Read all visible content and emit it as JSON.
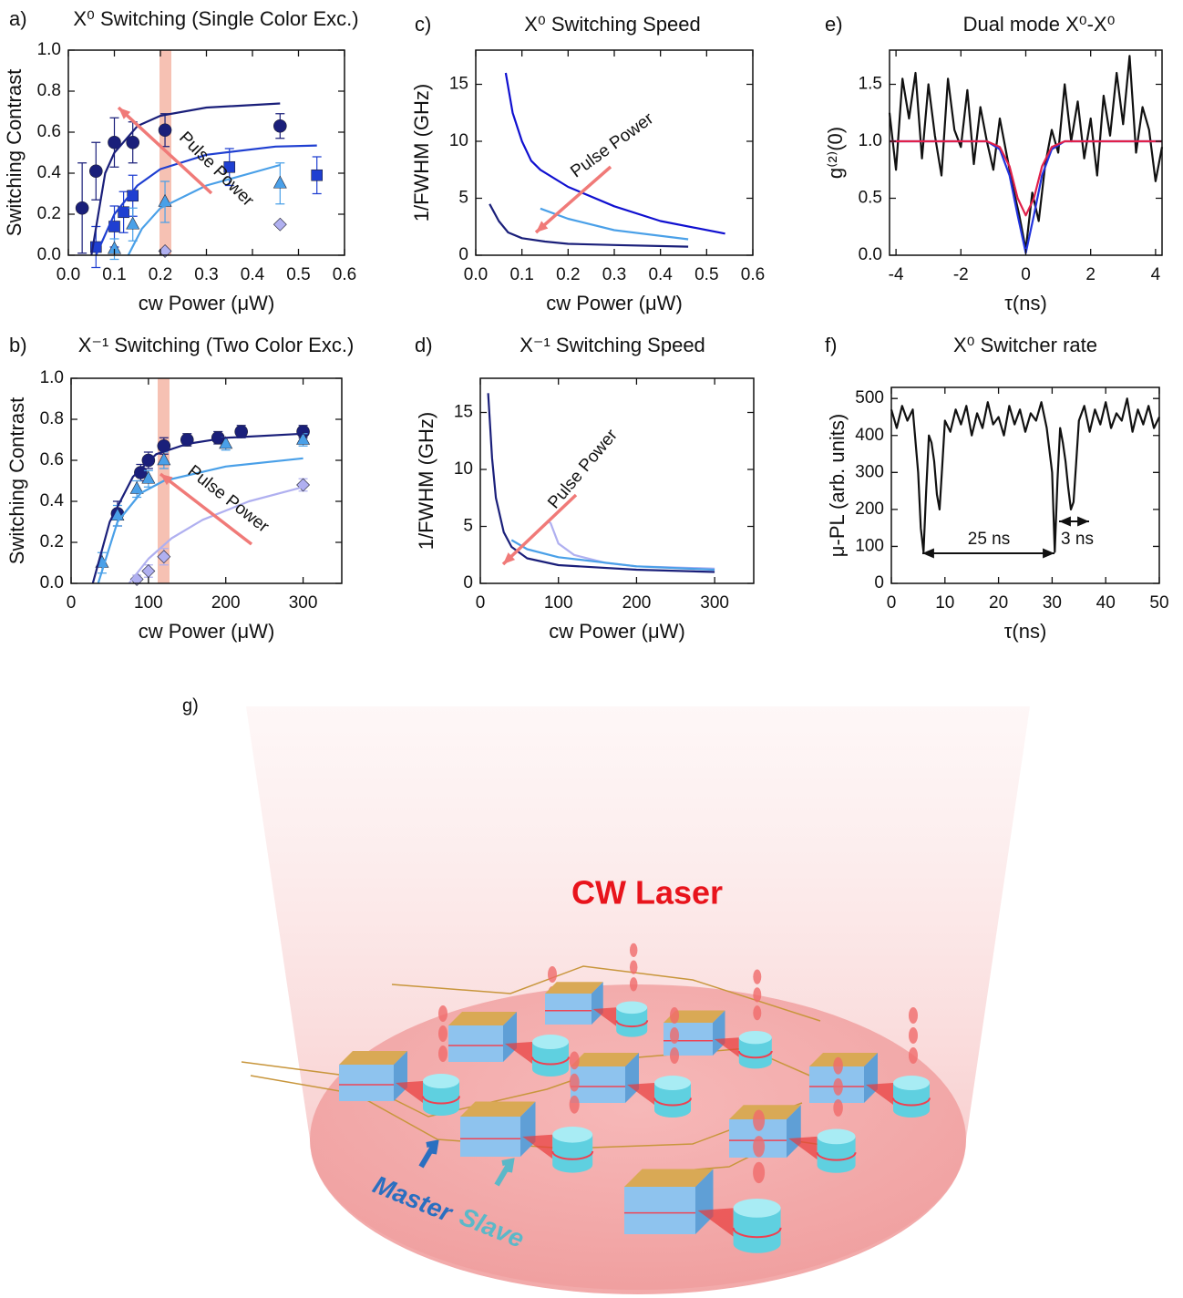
{
  "chart_data": [
    {
      "type": "scatter",
      "panel": "a)",
      "title": "X⁰ Switching (Single Color Exc.)",
      "xlabel": "cw Power (μW)",
      "ylabel": "Switching Contrast",
      "xlim": [
        0,
        0.6
      ],
      "xticks": [
        {
          "value": 0,
          "label": "0.0"
        },
        0.1,
        0.2,
        0.3,
        0.4,
        0.5,
        0.6
      ],
      "ylim": [
        0,
        1
      ],
      "yticks": [
        {
          "value": 0,
          "label": "0.0"
        },
        0.2,
        0.4,
        0.6,
        0.8,
        {
          "value": 1,
          "label": "1.0"
        }
      ],
      "annotations": [
        "Pulse Power"
      ],
      "series": [
        {
          "color": "#1a1f7a",
          "marker": "circle",
          "x": [
            0.03,
            0.06,
            0.1,
            0.14,
            0.21,
            0.46
          ],
          "values": [
            0.23,
            0.41,
            0.55,
            0.55,
            0.61,
            0.63
          ],
          "errors": [
            0.22,
            0.14,
            0.12,
            0.1,
            0.08,
            0.06
          ]
        },
        {
          "color": "#1f3fd1",
          "marker": "square",
          "x": [
            0.06,
            0.1,
            0.12,
            0.14,
            0.35,
            0.54
          ],
          "values": [
            0.04,
            0.14,
            0.21,
            0.29,
            0.43,
            0.39
          ],
          "errors": [
            0.1,
            0.1,
            0.1,
            0.1,
            0.09,
            0.09
          ]
        },
        {
          "color": "#4aa0e8",
          "marker": "triangle",
          "x": [
            0.1,
            0.14,
            0.21,
            0.46
          ],
          "values": [
            0.03,
            0.15,
            0.26,
            0.35
          ],
          "errors": [
            0.05,
            0.08,
            0.1,
            0.1
          ]
        },
        {
          "color": "#b0b0f0",
          "marker": "diamond",
          "x": [
            0.21,
            0.46
          ],
          "values": [
            0.02,
            0.15
          ]
        },
        {
          "color": "#1a1f7a",
          "x": [
            0.05,
            0.08,
            0.1,
            0.15,
            0.2,
            0.3,
            0.46
          ],
          "values": [
            0,
            0.4,
            0.5,
            0.63,
            0.68,
            0.72,
            0.74
          ]
        },
        {
          "color": "#1f3fd1",
          "x": [
            0.06,
            0.1,
            0.15,
            0.2,
            0.3,
            0.45,
            0.54
          ],
          "values": [
            0,
            0.2,
            0.34,
            0.42,
            0.49,
            0.53,
            0.535
          ]
        },
        {
          "color": "#4aa0e8",
          "x": [
            0.13,
            0.16,
            0.2,
            0.3,
            0.46
          ],
          "values": [
            0,
            0.13,
            0.23,
            0.34,
            0.44
          ]
        }
      ]
    },
    {
      "type": "line",
      "panel": "c)",
      "title": "X⁰ Switching Speed",
      "xlabel": "cw Power (μW)",
      "ylabel": "1/FWHM (GHz)",
      "xlim": [
        0,
        0.6
      ],
      "xticks": [
        {
          "value": 0,
          "label": "0.0"
        },
        0.1,
        0.2,
        0.3,
        0.4,
        0.5,
        0.6
      ],
      "ylim": [
        0,
        18
      ],
      "yticks": [
        0,
        5,
        10,
        15
      ],
      "annotations": [
        "Pulse Power"
      ],
      "series": [
        {
          "color": "#1010d0",
          "x": [
            0.065,
            0.08,
            0.1,
            0.12,
            0.14,
            0.2,
            0.3,
            0.4,
            0.54
          ],
          "values": [
            16,
            12.5,
            10,
            8.3,
            7.5,
            6,
            4.3,
            3,
            1.9
          ]
        },
        {
          "color": "#4aa0e8",
          "x": [
            0.14,
            0.2,
            0.3,
            0.46
          ],
          "values": [
            4.1,
            3.2,
            2.2,
            1.4
          ]
        },
        {
          "color": "#1a1f7a",
          "x": [
            0.03,
            0.05,
            0.07,
            0.1,
            0.15,
            0.2,
            0.3,
            0.46
          ],
          "values": [
            4.5,
            3,
            2,
            1.5,
            1.2,
            1,
            0.9,
            0.75
          ]
        }
      ]
    },
    {
      "type": "line",
      "panel": "e)",
      "title": "Dual mode X⁰-X⁰",
      "xlabel": "τ(ns)",
      "ylabel": "g⁽²⁾(0)",
      "xlim": [
        -4.2,
        4.2
      ],
      "xticks": [
        -4,
        -2,
        0,
        2,
        4
      ],
      "ylim": [
        0,
        1.8
      ],
      "yticks": [
        {
          "value": 0,
          "label": "0.0"
        },
        0.5,
        {
          "value": 1,
          "label": "1.0"
        },
        1.5
      ],
      "series": [
        {
          "color": "#111111",
          "x": [
            -4.2,
            -4,
            -3.8,
            -3.6,
            -3.4,
            -3.2,
            -3,
            -2.8,
            -2.6,
            -2.4,
            -2.2,
            -2,
            -1.8,
            -1.6,
            -1.4,
            -1.2,
            -1,
            -0.8,
            -0.6,
            -0.4,
            -0.2,
            0,
            0.2,
            0.4,
            0.6,
            0.8,
            1,
            1.2,
            1.4,
            1.6,
            1.8,
            2,
            2.2,
            2.4,
            2.6,
            2.8,
            3,
            3.2,
            3.4,
            3.6,
            3.8,
            4,
            4.2
          ],
          "values": [
            1.25,
            0.75,
            1.55,
            1.2,
            1.6,
            0.85,
            1.5,
            1.05,
            0.7,
            1.55,
            1.1,
            0.95,
            1.45,
            0.8,
            1.3,
            1.0,
            0.75,
            1.2,
            0.9,
            0.6,
            0.35,
            0.05,
            0.55,
            0.3,
            0.8,
            1.1,
            0.9,
            1.5,
            1.0,
            1.35,
            0.85,
            1.2,
            0.7,
            1.4,
            1.05,
            1.6,
            1.15,
            1.75,
            0.9,
            1.3,
            1.1,
            0.65,
            0.95
          ]
        },
        {
          "color": "#2233dd",
          "x": [
            -4.2,
            -1.2,
            -0.8,
            -0.5,
            -0.25,
            0,
            0.25,
            0.5,
            0.8,
            1.2,
            4.2
          ],
          "values": [
            1,
            1,
            0.93,
            0.7,
            0.35,
            0.02,
            0.35,
            0.7,
            0.93,
            1,
            1
          ]
        },
        {
          "color": "#e0204a",
          "x": [
            -4.2,
            -1.2,
            -0.8,
            -0.5,
            -0.25,
            0,
            0.25,
            0.5,
            0.8,
            1.2,
            4.2
          ],
          "values": [
            1,
            1,
            0.95,
            0.78,
            0.5,
            0.35,
            0.5,
            0.78,
            0.95,
            1,
            1
          ]
        }
      ]
    },
    {
      "type": "scatter",
      "panel": "b)",
      "title": "X⁻¹ Switching (Two Color Exc.)",
      "xlabel": "cw Power (μW)",
      "ylabel": "Switching Contrast",
      "xlim": [
        0,
        350
      ],
      "xticks": [
        0,
        100,
        200,
        300
      ],
      "ylim": [
        0,
        1
      ],
      "yticks": [
        {
          "value": 0,
          "label": "0.0"
        },
        0.2,
        0.4,
        0.6,
        0.8,
        {
          "value": 1,
          "label": "1.0"
        }
      ],
      "annotations": [
        "Pulse Power"
      ],
      "series": [
        {
          "color": "#1a1f7a",
          "marker": "circle",
          "x": [
            60,
            90,
            100,
            120,
            150,
            190,
            220,
            300
          ],
          "values": [
            0.34,
            0.54,
            0.6,
            0.67,
            0.7,
            0.71,
            0.74,
            0.74
          ],
          "errors": [
            0.06,
            0.04,
            0.04,
            0.04,
            0.03,
            0.03,
            0.03,
            0.03
          ]
        },
        {
          "color": "#4aa0e8",
          "marker": "triangle",
          "x": [
            40,
            60,
            85,
            100,
            120,
            200,
            300
          ],
          "values": [
            0.1,
            0.33,
            0.46,
            0.51,
            0.6,
            0.68,
            0.7
          ],
          "errors": [
            0.05,
            0.05,
            0.04,
            0.04,
            0.04,
            0.03,
            0.03
          ]
        },
        {
          "color": "#b0b0f0",
          "marker": "diamond",
          "x": [
            85,
            100,
            120,
            300
          ],
          "values": [
            0.02,
            0.06,
            0.13,
            0.48
          ],
          "errors": [
            0.02,
            0.03,
            0.04,
            0.03
          ]
        },
        {
          "color": "#1a1f7a",
          "x": [
            28,
            50,
            80,
            110,
            150,
            200,
            300
          ],
          "values": [
            0,
            0.3,
            0.52,
            0.63,
            0.68,
            0.71,
            0.73
          ]
        },
        {
          "color": "#4aa0e8",
          "x": [
            35,
            60,
            90,
            120,
            200,
            300
          ],
          "values": [
            0,
            0.3,
            0.44,
            0.5,
            0.57,
            0.61
          ]
        },
        {
          "color": "#b0b0f0",
          "x": [
            75,
            100,
            130,
            170,
            230,
            300
          ],
          "values": [
            0,
            0.12,
            0.22,
            0.31,
            0.4,
            0.47
          ]
        }
      ]
    },
    {
      "type": "line",
      "panel": "d)",
      "title": "X⁻¹ Switching Speed",
      "xlabel": "cw Power (μW)",
      "ylabel": "1/FWHM (GHz)",
      "xlim": [
        0,
        350
      ],
      "xticks": [
        0,
        100,
        200,
        300
      ],
      "ylim": [
        0,
        18
      ],
      "yticks": [
        0,
        5,
        10,
        15
      ],
      "annotations": [
        "Pulse Power"
      ],
      "series": [
        {
          "color": "#b0b0f0",
          "x": [
            85,
            90,
            100,
            120,
            160,
            200,
            300
          ],
          "values": [
            5.5,
            5.3,
            3.5,
            2.5,
            1.8,
            1.5,
            1.3
          ]
        },
        {
          "color": "#4aa0e8",
          "x": [
            40,
            60,
            100,
            200,
            300
          ],
          "values": [
            3.8,
            3.0,
            2.3,
            1.5,
            1.2
          ]
        },
        {
          "color": "#1a1f7a",
          "x": [
            10,
            15,
            20,
            30,
            40,
            60,
            100,
            200,
            300
          ],
          "values": [
            16.7,
            11,
            7.5,
            4.5,
            3.2,
            2.2,
            1.6,
            1.2,
            1
          ]
        }
      ]
    },
    {
      "type": "line",
      "panel": "f)",
      "title": "X⁰ Switcher rate",
      "xlabel": "τ(ns)",
      "ylabel": "μ-PL (arb. units)",
      "xlim": [
        0,
        50
      ],
      "xticks": [
        0,
        10,
        20,
        30,
        40,
        50
      ],
      "ylim": [
        0,
        530
      ],
      "yticks": [
        0,
        100,
        200,
        300,
        400,
        500
      ],
      "annotations": [
        "25 ns",
        "3 ns"
      ],
      "series": [
        {
          "color": "#111111",
          "x": [
            0,
            1,
            2,
            3,
            4,
            5,
            5.5,
            6,
            6.5,
            7,
            7.5,
            8,
            8.5,
            9,
            9.5,
            10,
            11,
            12,
            13,
            14,
            15,
            16,
            17,
            18,
            19,
            20,
            21,
            22,
            23,
            24,
            25,
            26,
            27,
            28,
            29,
            30,
            30.5,
            31,
            31.5,
            32,
            32.5,
            33,
            33.5,
            34,
            34.5,
            35,
            36,
            37,
            38,
            39,
            40,
            41,
            42,
            43,
            44,
            45,
            46,
            47,
            48,
            49,
            50
          ],
          "values": [
            470,
            420,
            480,
            440,
            470,
            300,
            150,
            85,
            250,
            400,
            380,
            330,
            240,
            200,
            320,
            440,
            410,
            470,
            430,
            480,
            400,
            460,
            420,
            490,
            430,
            450,
            400,
            480,
            430,
            470,
            410,
            460,
            440,
            490,
            420,
            300,
            85,
            280,
            420,
            380,
            330,
            260,
            200,
            220,
            330,
            440,
            480,
            410,
            470,
            430,
            490,
            420,
            460,
            440,
            500,
            410,
            470,
            430,
            480,
            420,
            450
          ]
        }
      ]
    }
  ],
  "illustration": {
    "panel": "g)",
    "title": "CW Laser",
    "labels": [
      "Master",
      "Slave"
    ]
  }
}
